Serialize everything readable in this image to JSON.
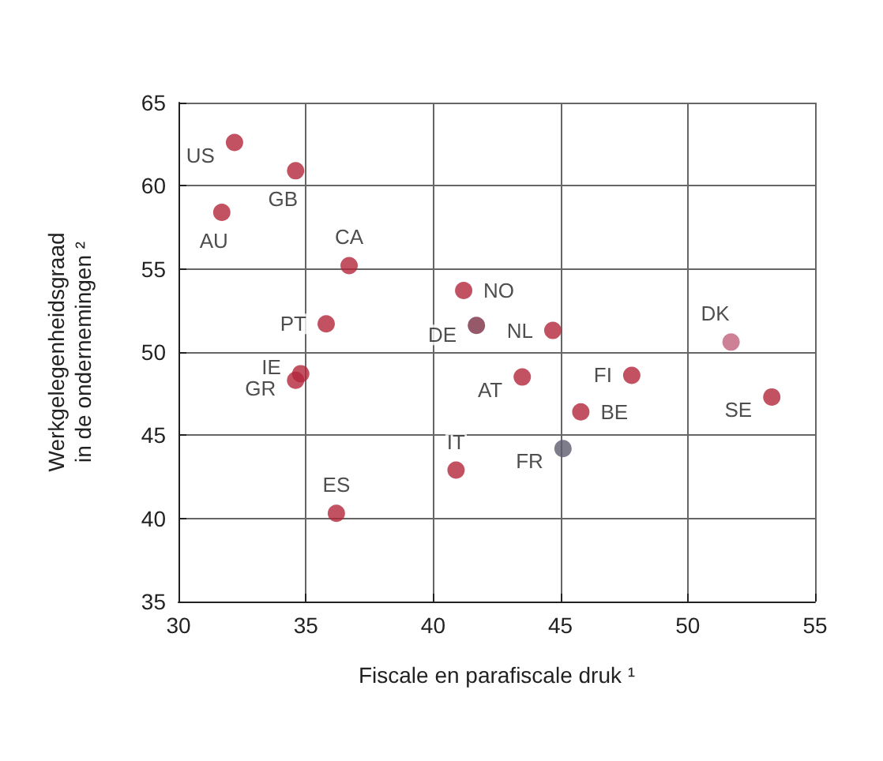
{
  "chart_data": {
    "type": "scatter",
    "xlabel": "Fiscale en parafiscale druk ¹",
    "ylabel": "Werkgelegenheidsgraad\nin de ondernemingen ²",
    "x": [
      32.2,
      34.6,
      31.7,
      36.7,
      35.8,
      34.8,
      34.6,
      36.2,
      41.2,
      41.7,
      44.7,
      43.5,
      47.8,
      45.8,
      45.1,
      40.9,
      51.7,
      53.3
    ],
    "values": [
      62.6,
      60.9,
      58.4,
      55.2,
      51.7,
      48.7,
      48.3,
      40.3,
      53.7,
      51.6,
      51.3,
      48.5,
      48.6,
      46.4,
      44.2,
      42.9,
      50.6,
      47.3
    ],
    "value_labels": [
      "US",
      "GB",
      "AU",
      "CA",
      "PT",
      "IE",
      "GR",
      "ES",
      "NO",
      "DE",
      "NL",
      "AT",
      "FI",
      "BE",
      "FR",
      "IT",
      "DK",
      "SE"
    ],
    "colors": [
      "#b3263a",
      "#b3263a",
      "#b3263a",
      "#b3263a",
      "#b3263a",
      "#b3263a",
      "#b3263a",
      "#b3263a",
      "#b3263a",
      "#7a3045",
      "#b3263a",
      "#b3263a",
      "#b3263a",
      "#b3263a",
      "#5c5c6e",
      "#b3263a",
      "#c0607c",
      "#b3263a"
    ],
    "xlim": [
      30,
      55
    ],
    "xticks": [
      30,
      35,
      40,
      45,
      50,
      55
    ],
    "ylim": [
      35,
      65
    ],
    "yticks": [
      35,
      40,
      45,
      50,
      55,
      60,
      65
    ],
    "grid": true,
    "marker": "circle"
  }
}
